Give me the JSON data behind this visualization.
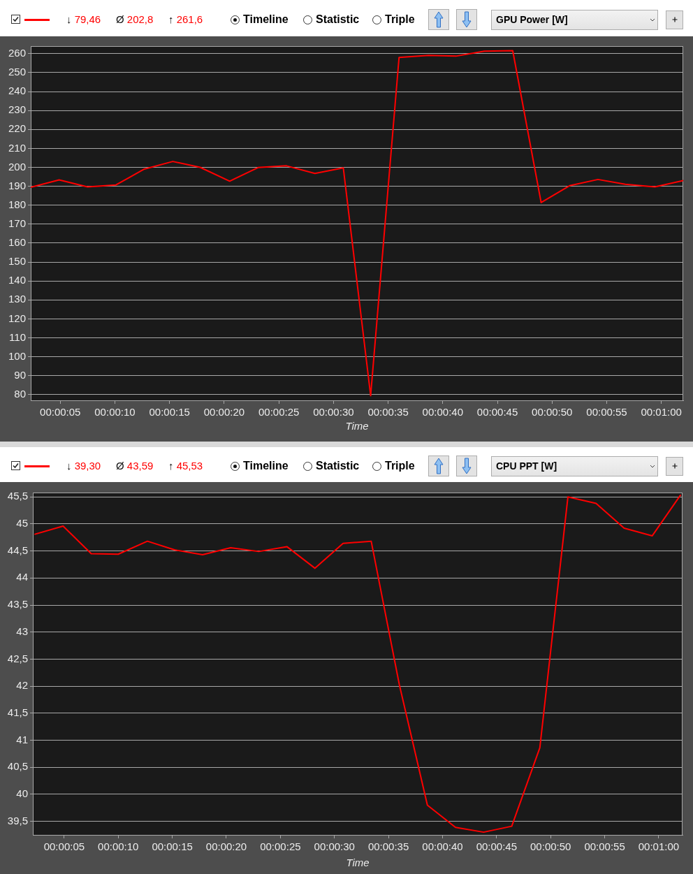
{
  "chart_data": [
    {
      "type": "line",
      "title": "GPU Power [W]",
      "xlabel": "Time",
      "annotations": [
        "↓ 79,46",
        "Ø 202,8",
        "↑ 261,6",
        "Timeline",
        "Statistic",
        "Triple"
      ],
      "x": [
        2.3,
        4.9,
        7.5,
        10.1,
        12.7,
        15.3,
        17.8,
        20.5,
        23.1,
        25.7,
        28.3,
        30.9,
        33.4,
        36.0,
        38.7,
        41.2,
        43.8,
        46.4,
        49.0,
        51.6,
        54.2,
        56.7,
        59.4,
        62.0
      ],
      "series": [
        {
          "color": "#ff0000",
          "values": [
            189.5,
            193.4,
            189.7,
            190.7,
            199.1,
            203.1,
            200.0,
            192.7,
            199.9,
            200.8,
            196.8,
            199.7,
            79.46,
            258.0,
            259.1,
            258.7,
            261.3,
            261.6,
            181.4,
            190.3,
            193.6,
            191.1,
            189.7,
            193.0
          ]
        }
      ],
      "xlim": [
        2.3,
        62.0
      ],
      "xticks": [
        {
          "value": 5,
          "label": "00:00:05"
        },
        {
          "value": 10,
          "label": "00:00:10"
        },
        {
          "value": 15,
          "label": "00:00:15"
        },
        {
          "value": 20,
          "label": "00:00:20"
        },
        {
          "value": 25,
          "label": "00:00:25"
        },
        {
          "value": 30,
          "label": "00:00:30"
        },
        {
          "value": 35,
          "label": "00:00:35"
        },
        {
          "value": 40,
          "label": "00:00:40"
        },
        {
          "value": 45,
          "label": "00:00:45"
        },
        {
          "value": 50,
          "label": "00:00:50"
        },
        {
          "value": 55,
          "label": "00:00:55"
        },
        {
          "value": 60,
          "label": "00:01:00"
        }
      ],
      "ylim": [
        77,
        264
      ],
      "yticks": [
        80,
        90,
        100,
        110,
        120,
        130,
        140,
        150,
        160,
        170,
        180,
        190,
        200,
        210,
        220,
        230,
        240,
        250,
        260
      ],
      "grid": "y",
      "marker": "none",
      "line_style": "solid"
    },
    {
      "type": "line",
      "title": "CPU PPT [W]",
      "xlabel": "Time",
      "annotations": [
        "↓ 39,30",
        "Ø 43,59",
        "↑ 45,53",
        "Timeline",
        "Statistic",
        "Triple"
      ],
      "x": [
        2.3,
        4.9,
        7.5,
        10.0,
        12.7,
        15.2,
        17.8,
        20.4,
        23.0,
        25.6,
        28.2,
        30.8,
        33.4,
        36.0,
        38.6,
        41.2,
        43.8,
        46.4,
        49.0,
        51.6,
        54.2,
        56.8,
        59.4,
        62.0
      ],
      "series": [
        {
          "color": "#ff0000",
          "values": [
            44.81,
            44.96,
            44.45,
            44.44,
            44.68,
            44.52,
            44.43,
            44.56,
            44.49,
            44.58,
            44.18,
            44.64,
            44.68,
            42.03,
            39.8,
            39.39,
            39.3,
            39.41,
            40.86,
            45.5,
            45.38,
            44.92,
            44.78,
            45.53
          ]
        }
      ],
      "xlim": [
        2.1,
        62.2
      ],
      "xticks": [
        {
          "value": 5,
          "label": "00:00:05"
        },
        {
          "value": 10,
          "label": "00:00:10"
        },
        {
          "value": 15,
          "label": "00:00:15"
        },
        {
          "value": 20,
          "label": "00:00:20"
        },
        {
          "value": 25,
          "label": "00:00:25"
        },
        {
          "value": 30,
          "label": "00:00:30"
        },
        {
          "value": 35,
          "label": "00:00:35"
        },
        {
          "value": 40,
          "label": "00:00:40"
        },
        {
          "value": 45,
          "label": "00:00:45"
        },
        {
          "value": 50,
          "label": "00:00:50"
        },
        {
          "value": 55,
          "label": "00:00:55"
        },
        {
          "value": 60,
          "label": "00:01:00"
        }
      ],
      "ylim": [
        39.25,
        45.58
      ],
      "yticks": [
        {
          "value": 39.5,
          "label": "39,5"
        },
        40,
        {
          "value": 40.5,
          "label": "40,5"
        },
        41,
        {
          "value": 41.5,
          "label": "41,5"
        },
        42,
        {
          "value": 42.5,
          "label": "42,5"
        },
        43,
        {
          "value": 43.5,
          "label": "43,5"
        },
        44,
        {
          "value": 44.5,
          "label": "44,5"
        },
        45,
        {
          "value": 45.5,
          "label": "45,5"
        }
      ],
      "grid": "y",
      "marker": "none",
      "line_style": "solid"
    }
  ]
}
